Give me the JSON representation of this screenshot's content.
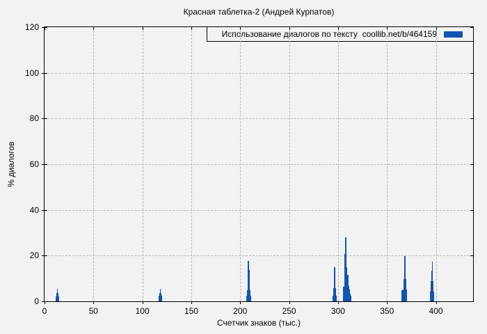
{
  "page": {
    "background": "#f2f2f2"
  },
  "chart_data": {
    "type": "bar",
    "title": "Красная таблетка-2 (Андрей Курпатов)",
    "xlabel": "Счетчик знаков (тыс.)",
    "ylabel": "% диалогов",
    "legend": {
      "label": "Использование диалогов по тексту  coollib.net/b/464159",
      "position": "top-right",
      "boxed": true
    },
    "xlim": [
      0,
      438
    ],
    "ylim": [
      0,
      120
    ],
    "xticks": [
      0,
      50,
      100,
      150,
      200,
      250,
      300,
      350,
      400
    ],
    "yticks": [
      0,
      20,
      40,
      60,
      80,
      100,
      120
    ],
    "grid": true,
    "bar_color": "#1254b0",
    "grid_color": "#b4b4b4",
    "axis_color": "#000000",
    "bars": [
      {
        "x": 13.1,
        "v": 2.2,
        "w": 3.4
      },
      {
        "x": 13.2,
        "v": 3.8,
        "w": 2.0
      },
      {
        "x": 13.3,
        "v": 5.4,
        "w": 1.1
      },
      {
        "x": 118.2,
        "v": 2.3,
        "w": 3.4
      },
      {
        "x": 118.3,
        "v": 3.6,
        "w": 2.0
      },
      {
        "x": 118.4,
        "v": 5.4,
        "w": 1.1
      },
      {
        "x": 208.6,
        "v": 2.4,
        "w": 5.0
      },
      {
        "x": 208.5,
        "v": 4.9,
        "w": 3.6
      },
      {
        "x": 208.6,
        "v": 9.0,
        "w": 2.6
      },
      {
        "x": 208.7,
        "v": 13.8,
        "w": 1.8
      },
      {
        "x": 208.4,
        "v": 17.8,
        "w": 1.1
      },
      {
        "x": 296.7,
        "v": 2.5,
        "w": 4.2
      },
      {
        "x": 296.6,
        "v": 5.8,
        "w": 2.6
      },
      {
        "x": 296.5,
        "v": 8.8,
        "w": 1.8
      },
      {
        "x": 296.4,
        "v": 14.8,
        "w": 1.1
      },
      {
        "x": 309.2,
        "v": 2.3,
        "w": 8.4
      },
      {
        "x": 306.2,
        "v": 6.3,
        "w": 2.2
      },
      {
        "x": 307.3,
        "v": 20.8,
        "w": 1.4
      },
      {
        "x": 307.8,
        "v": 27.9,
        "w": 1.1
      },
      {
        "x": 308.3,
        "v": 15.0,
        "w": 1.5
      },
      {
        "x": 308.8,
        "v": 8.0,
        "w": 1.3
      },
      {
        "x": 310.3,
        "v": 11.5,
        "w": 1.3
      },
      {
        "x": 310.9,
        "v": 6.8,
        "w": 1.5
      },
      {
        "x": 311.6,
        "v": 5.2,
        "w": 1.3
      },
      {
        "x": 312.4,
        "v": 3.4,
        "w": 1.6
      },
      {
        "x": 365.6,
        "v": 5.0,
        "w": 1.3
      },
      {
        "x": 368.2,
        "v": 5.2,
        "w": 3.8
      },
      {
        "x": 368.3,
        "v": 9.7,
        "w": 2.4
      },
      {
        "x": 368.4,
        "v": 14.2,
        "w": 1.6
      },
      {
        "x": 368.2,
        "v": 19.8,
        "w": 1.1
      },
      {
        "x": 396.0,
        "v": 4.4,
        "w": 3.8
      },
      {
        "x": 396.0,
        "v": 8.8,
        "w": 2.6
      },
      {
        "x": 396.2,
        "v": 13.3,
        "w": 1.7
      },
      {
        "x": 396.3,
        "v": 17.5,
        "w": 1.1
      }
    ]
  }
}
